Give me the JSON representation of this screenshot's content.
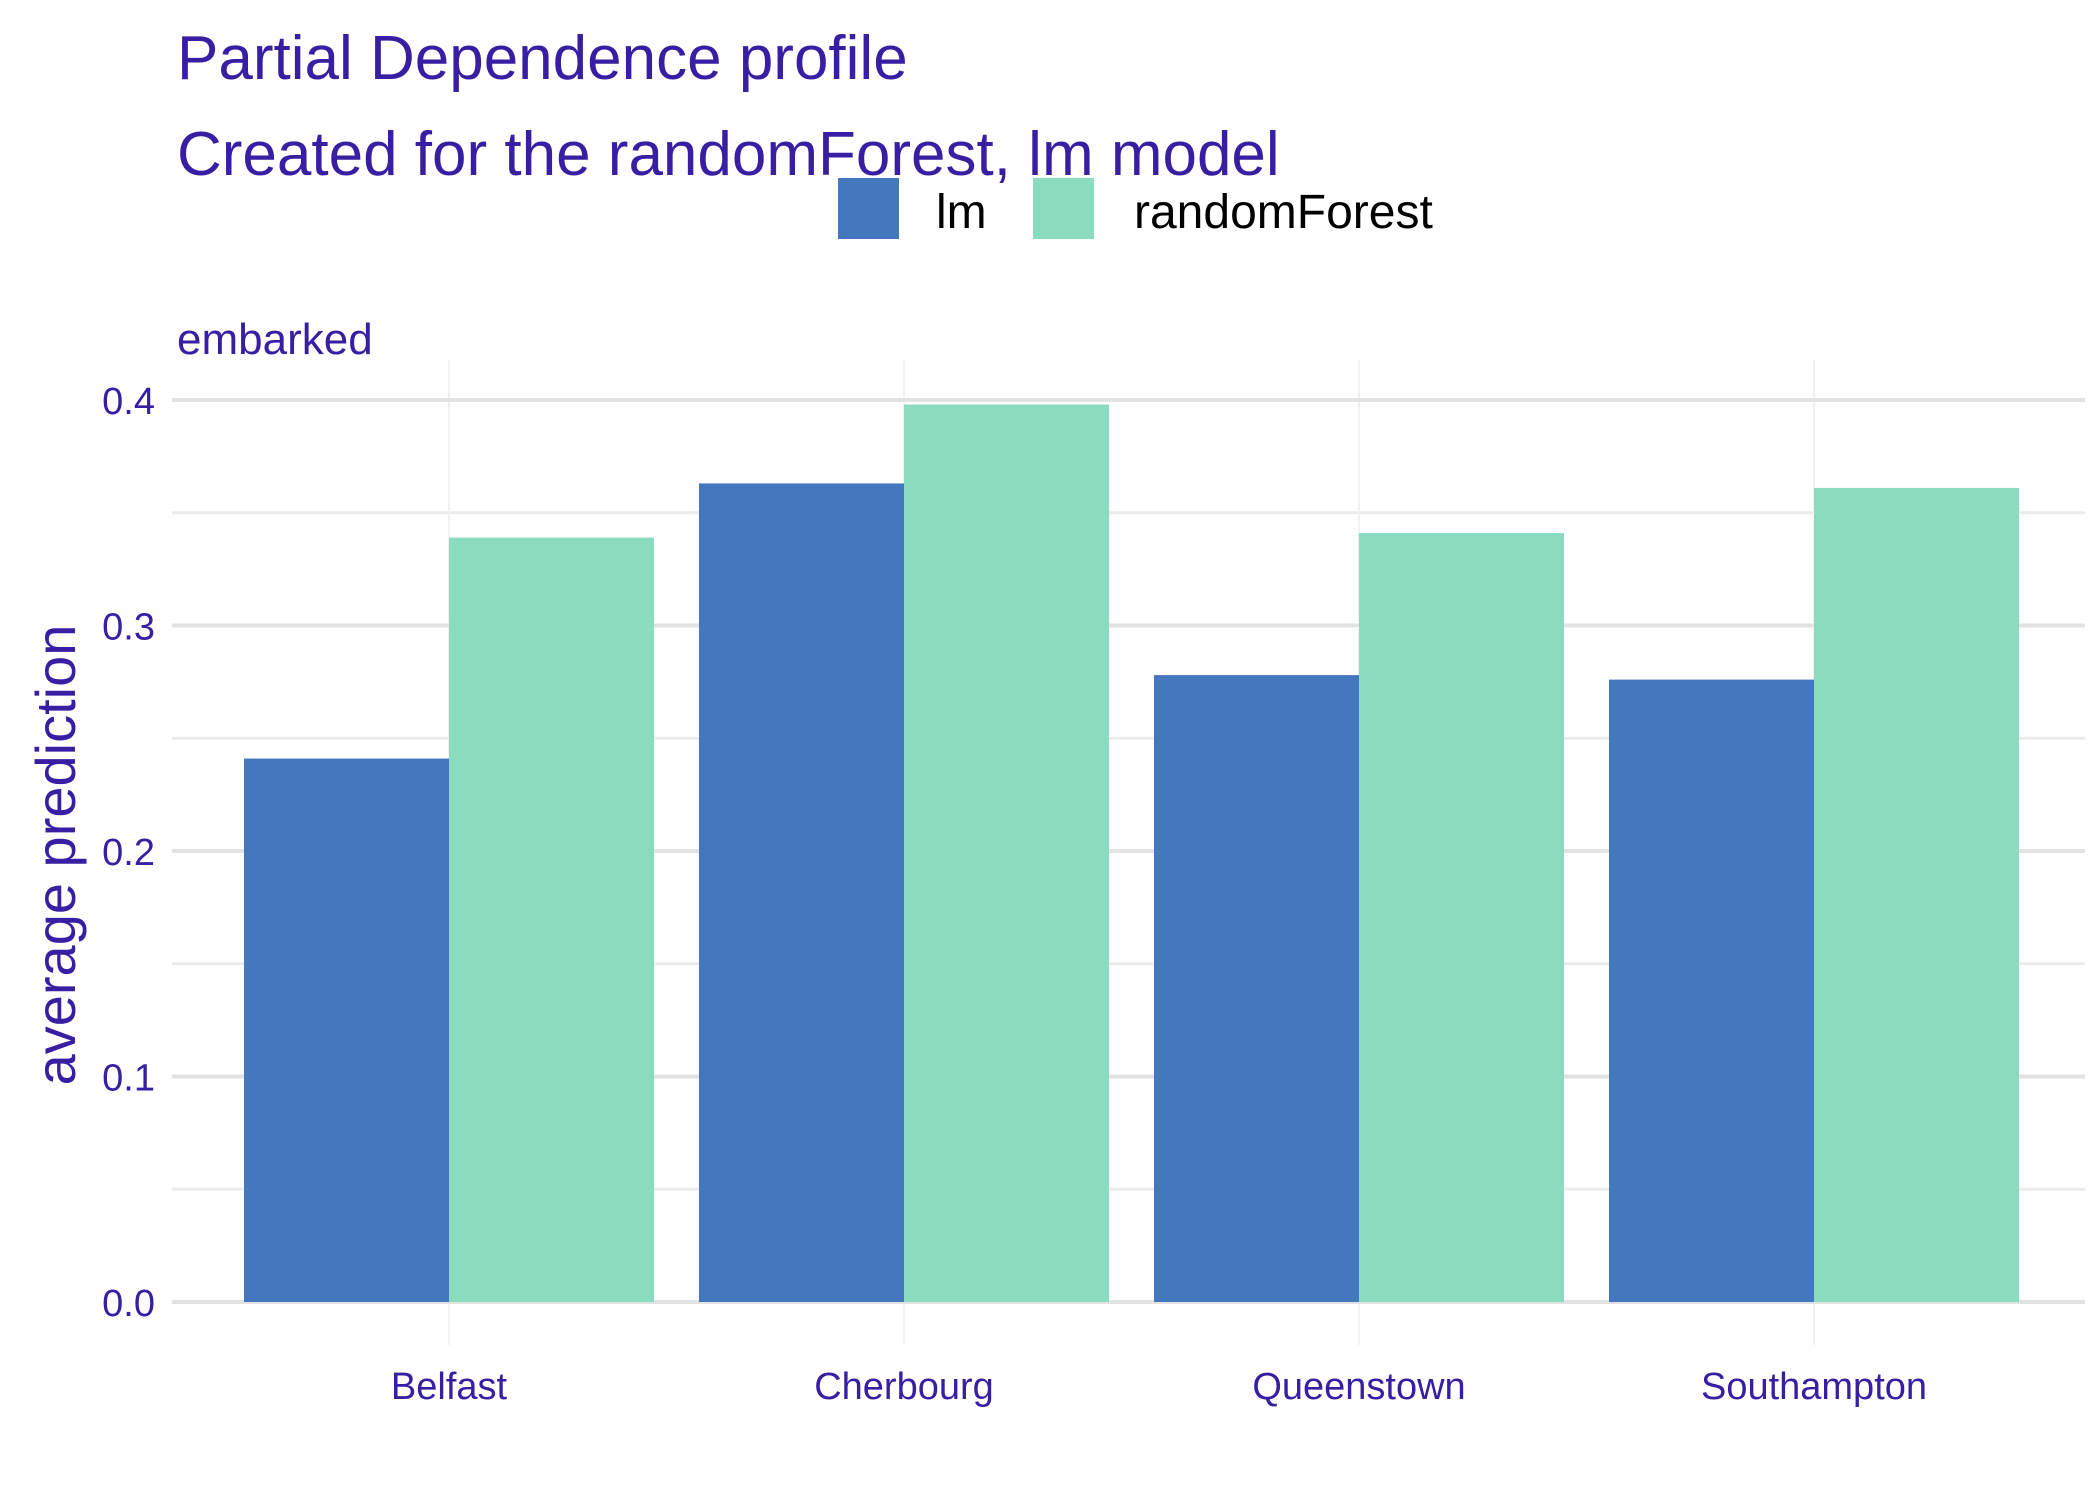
{
  "chart_data": {
    "type": "bar",
    "title": "Partial Dependence profile",
    "subtitle": "Created for the randomForest, lm model",
    "panel_label": "embarked",
    "xlabel": "",
    "ylabel": "average prediction",
    "categories": [
      "Belfast",
      "Cherbourg",
      "Queenstown",
      "Southampton"
    ],
    "series": [
      {
        "name": "lm",
        "color": "#4378bf",
        "values": [
          0.241,
          0.363,
          0.278,
          0.276
        ]
      },
      {
        "name": "randomForest",
        "color": "#8bdcbe",
        "values": [
          0.339,
          0.398,
          0.341,
          0.361
        ]
      }
    ],
    "ylim": [
      0,
      0.41
    ],
    "yticks": [
      0.0,
      0.1,
      0.2,
      0.3,
      0.4
    ],
    "ytick_labels": [
      "0.0",
      "0.1",
      "0.2",
      "0.3",
      "0.4"
    ],
    "grid": true,
    "legend_position": "top"
  }
}
